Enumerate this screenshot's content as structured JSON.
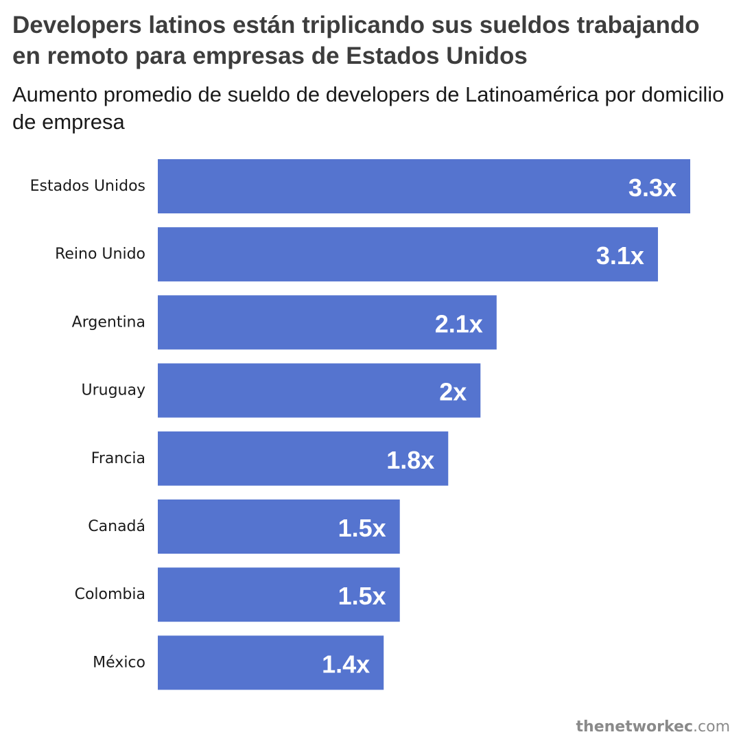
{
  "title": "Developers latinos están triplicando sus sueldos trabajando en remoto para empresas de Estados Unidos",
  "subtitle": "Aumento promedio de sueldo de developers de Latinoamérica por domicilio de empresa",
  "source": {
    "name": "thenetworkec",
    "tld": ".com"
  },
  "chart_data": {
    "type": "bar",
    "orientation": "horizontal",
    "title": "Developers latinos están triplicando sus sueldos trabajando en remoto para empresas de Estados Unidos",
    "subtitle": "Aumento promedio de sueldo de developers de Latinoamérica por domicilio de empresa",
    "categories": [
      "Estados Unidos",
      "Reino Unido",
      "Argentina",
      "Uruguay",
      "Francia",
      "Canadá",
      "Colombia",
      "México"
    ],
    "values": [
      3.3,
      3.1,
      2.1,
      2.0,
      1.8,
      1.5,
      1.5,
      1.4
    ],
    "data_labels": [
      "3.3x",
      "3.1x",
      "2.1x",
      "2x",
      "1.8x",
      "1.5x",
      "1.5x",
      "1.4x"
    ],
    "xlabel": "",
    "ylabel": "",
    "xlim": [
      0,
      3.3
    ],
    "grid": false,
    "legend": "none",
    "bar_color": "#5574cf",
    "label_color": "#ffffff"
  }
}
